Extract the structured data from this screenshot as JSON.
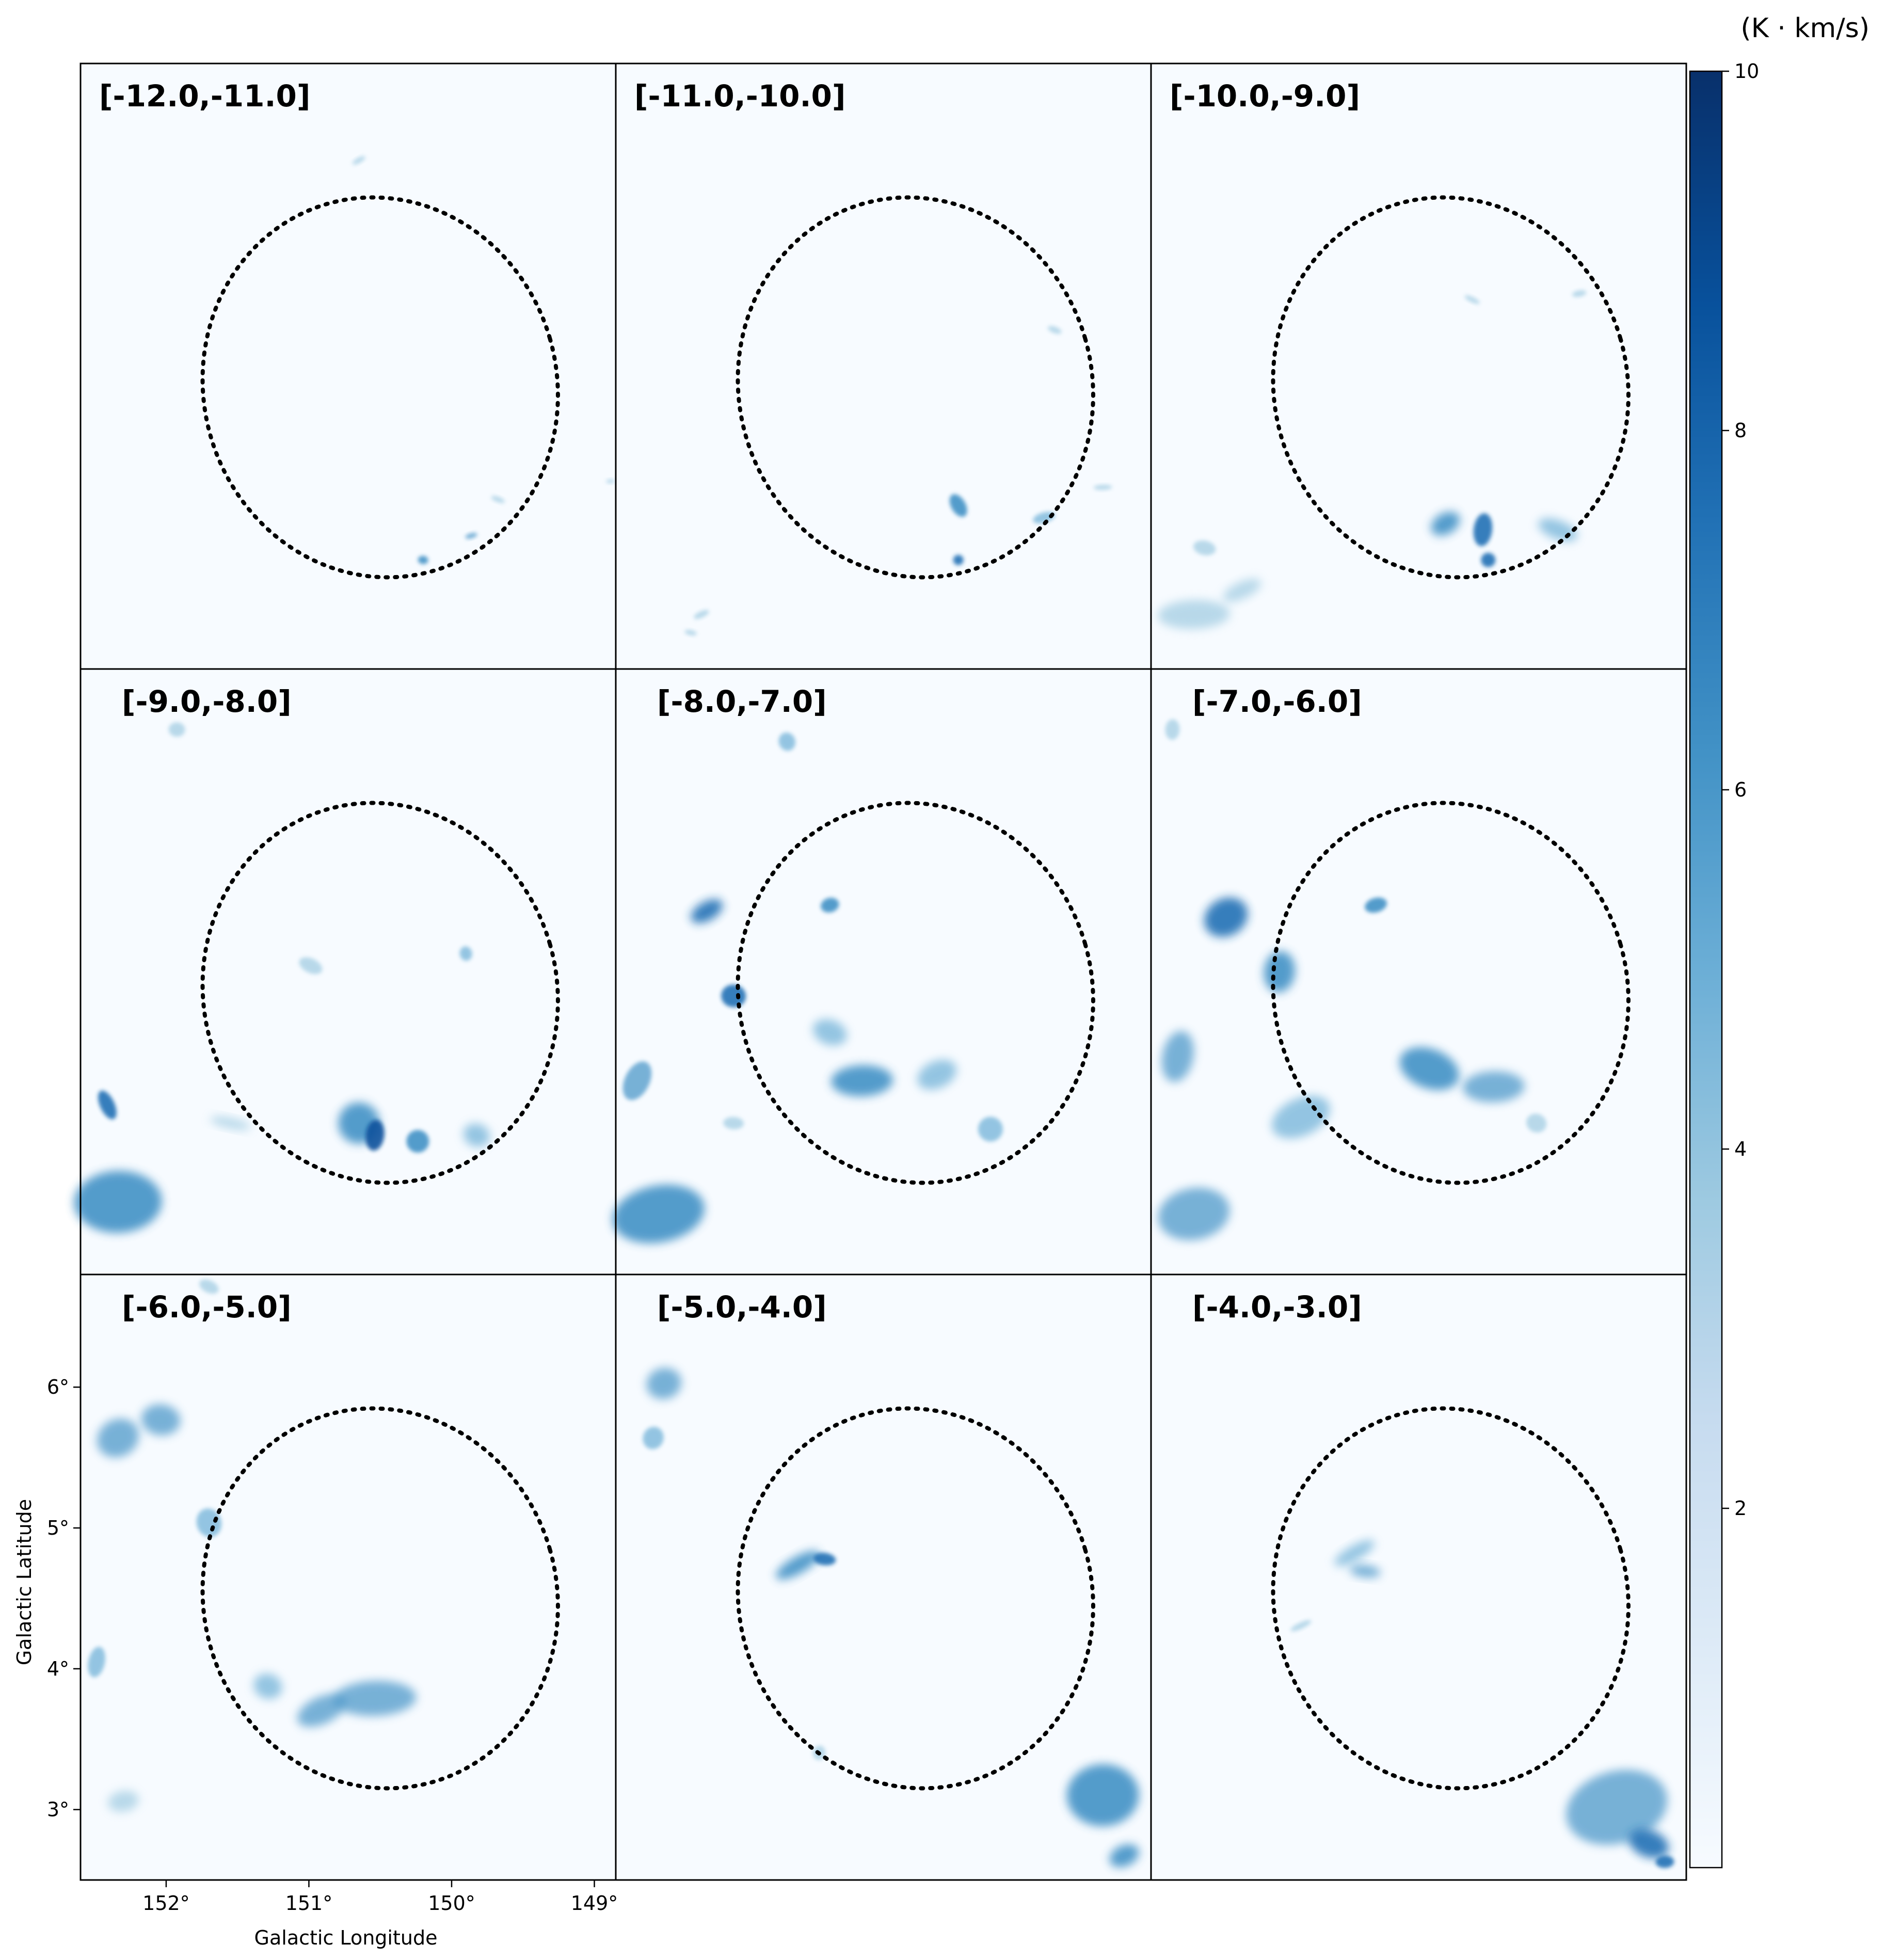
{
  "chart_data": {
    "type": "heatmap",
    "layout": "3x3 grid of channel maps",
    "panel_labels": [
      "[-12.0,-11.0]",
      "[-11.0,-10.0]",
      "[-10.0,-9.0]",
      "[-9.0,-8.0]",
      "[-8.0,-7.0]",
      "[-7.0,-6.0]",
      "[-6.0,-5.0]",
      "[-5.0,-4.0]",
      "[-4.0,-3.0]"
    ],
    "xlabel": "Galactic Longitude",
    "ylabel": "Galactic Latitude",
    "xticks": [
      {
        "value": 152,
        "label": "152°"
      },
      {
        "value": 151,
        "label": "151°"
      },
      {
        "value": 150,
        "label": "150°"
      },
      {
        "value": 149,
        "label": "149°"
      }
    ],
    "yticks": [
      {
        "value": 6,
        "label": "6°"
      },
      {
        "value": 5,
        "label": "5°"
      },
      {
        "value": 4,
        "label": "4°"
      },
      {
        "value": 3,
        "label": "3°"
      }
    ],
    "xlim": [
      152.6,
      148.85
    ],
    "ylim": [
      2.5,
      6.8
    ],
    "colormap": "Blues",
    "colorbar": {
      "unit_label": "(K · km/s)",
      "range": [
        0,
        10
      ],
      "ticks": [
        2,
        4,
        6,
        8,
        10
      ],
      "tick_labels": [
        "2",
        "4",
        "6",
        "8",
        "10"
      ]
    },
    "ellipse": {
      "center_l": 150.5,
      "center_b": 4.5,
      "style": "dotted",
      "color": "#000000"
    },
    "grid": false
  }
}
